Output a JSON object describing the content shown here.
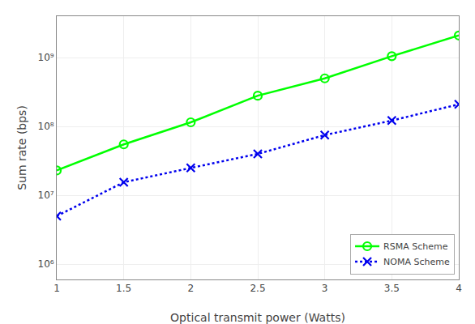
{
  "chart_data": {
    "type": "line",
    "x_label": "Optical transmit power (Watts)",
    "y_label": "Sum rate (bps)",
    "log": "y",
    "grid": true,
    "legend": "lower right",
    "xlim": [
      1.0,
      4.0
    ],
    "xticks": [
      1,
      1.5,
      2,
      2.5,
      3,
      3.5,
      4
    ],
    "ylim": [
      600000.0,
      4000000000.0
    ],
    "yticks": [
      {
        "value": 1000000,
        "label": "10⁶"
      },
      {
        "value": 10000000,
        "label": "10⁷"
      },
      {
        "value": 100000000,
        "label": "10⁸"
      },
      {
        "value": 1000000000,
        "label": "10⁹"
      }
    ],
    "series": [
      {
        "name": "RSMA Scheme",
        "color": "#00FF00",
        "marker": "circle-open",
        "line_style": "solid",
        "x": [
          1.0,
          1.5,
          2.0,
          2.5,
          3.0,
          3.5,
          4.0
        ],
        "values": [
          23000000.0,
          55000000.0,
          115000000.0,
          280000000.0,
          500000000.0,
          1050000000.0,
          2100000000.0
        ]
      },
      {
        "name": "NOMA Scheme",
        "color": "#0000EE",
        "marker": "x",
        "line_style": "dotted",
        "x": [
          1.0,
          1.5,
          2.0,
          2.5,
          3.0,
          3.5,
          4.0
        ],
        "values": [
          5000000.0,
          15500000.0,
          25000000.0,
          40000000.0,
          75000000.0,
          122000000.0,
          210000000.0
        ]
      }
    ]
  }
}
